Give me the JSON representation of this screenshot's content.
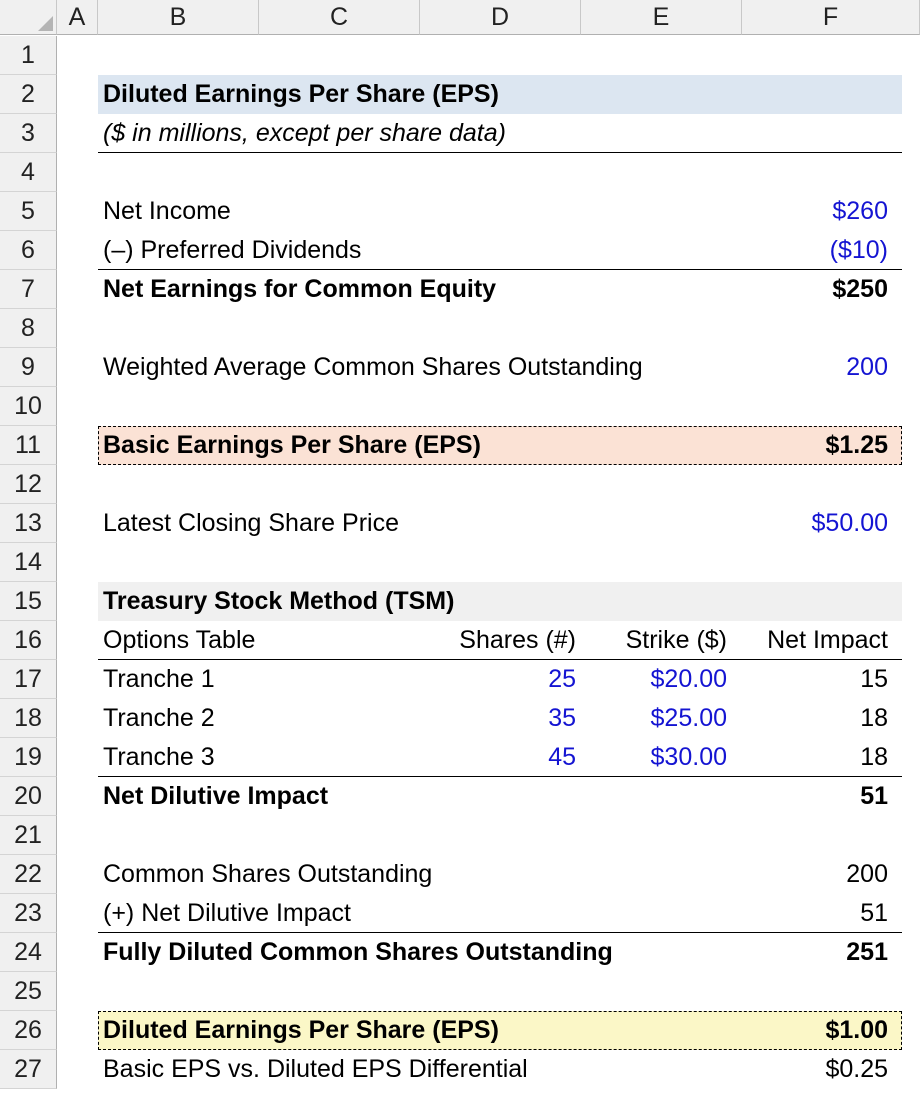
{
  "columns": [
    "A",
    "B",
    "C",
    "D",
    "E",
    "F"
  ],
  "rows": [
    "1",
    "2",
    "3",
    "4",
    "5",
    "6",
    "7",
    "8",
    "9",
    "10",
    "11",
    "12",
    "13",
    "14",
    "15",
    "16",
    "17",
    "18",
    "19",
    "20",
    "21",
    "22",
    "23",
    "24",
    "25",
    "26",
    "27"
  ],
  "title": "Diluted Earnings Per Share (EPS)",
  "subtitle": "($ in millions, except per share data)",
  "net_income": {
    "label": "Net Income",
    "value": "$260"
  },
  "preferred_dividends": {
    "label": "(–) Preferred Dividends",
    "value": "($10)"
  },
  "net_earnings_common": {
    "label": "Net Earnings for Common Equity",
    "value": "$250"
  },
  "weighted_avg_shares": {
    "label": "Weighted Average Common Shares Outstanding",
    "value": "200"
  },
  "basic_eps": {
    "label": "Basic Earnings Per Share (EPS)",
    "value": "$1.25"
  },
  "closing_price": {
    "label": "Latest Closing Share Price",
    "value": "$50.00"
  },
  "tsm": {
    "title": "Treasury Stock Method (TSM)",
    "headers": {
      "label": "Options Table",
      "shares": "Shares (#)",
      "strike": "Strike ($)",
      "impact": "Net Impact"
    },
    "tranches": [
      {
        "label": "Tranche 1",
        "shares": "25",
        "strike": "$20.00",
        "impact": "15"
      },
      {
        "label": "Tranche 2",
        "shares": "35",
        "strike": "$25.00",
        "impact": "18"
      },
      {
        "label": "Tranche 3",
        "shares": "45",
        "strike": "$30.00",
        "impact": "18"
      }
    ],
    "net_dilutive": {
      "label": "Net Dilutive Impact",
      "value": "51"
    }
  },
  "common_shares": {
    "label": "Common Shares Outstanding",
    "value": "200"
  },
  "plus_dilutive": {
    "label": "(+) Net Dilutive Impact",
    "value": "51"
  },
  "fully_diluted": {
    "label": "Fully Diluted Common Shares Outstanding",
    "value": "251"
  },
  "diluted_eps": {
    "label": "Diluted Earnings Per Share (EPS)",
    "value": "$1.00"
  },
  "differential": {
    "label": "Basic EPS vs. Diluted EPS Differential",
    "value": "$0.25"
  },
  "colors": {
    "input_blue": "#1414d2",
    "title_band": "#dce6f1",
    "basic_band": "#fbe2d5",
    "diluted_band": "#fbf7c7",
    "tsm_band": "#f0f0f0"
  }
}
